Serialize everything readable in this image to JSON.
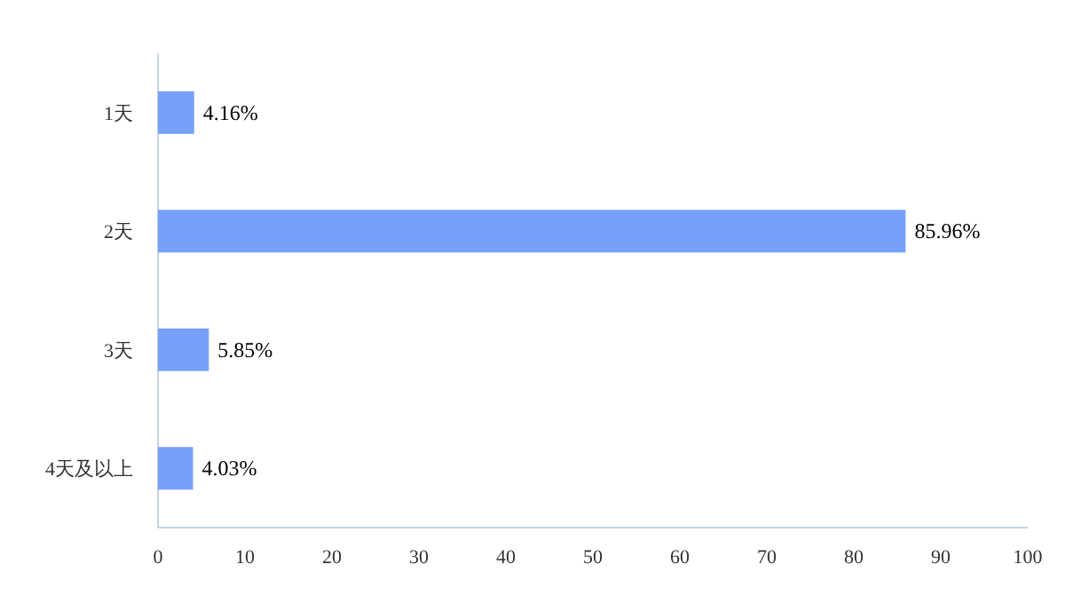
{
  "chart_data": {
    "type": "bar",
    "orientation": "horizontal",
    "categories": [
      "1天",
      "2天",
      "3天",
      "4天及以上"
    ],
    "values": [
      4.16,
      85.96,
      5.85,
      4.03
    ],
    "value_labels": [
      "4.16%",
      "85.96%",
      "5.85%",
      "4.03%"
    ],
    "color": "#76a0fa",
    "xlim": [
      0,
      100
    ],
    "xticks": [
      0,
      10,
      20,
      30,
      40,
      50,
      60,
      70,
      80,
      90,
      100
    ]
  }
}
